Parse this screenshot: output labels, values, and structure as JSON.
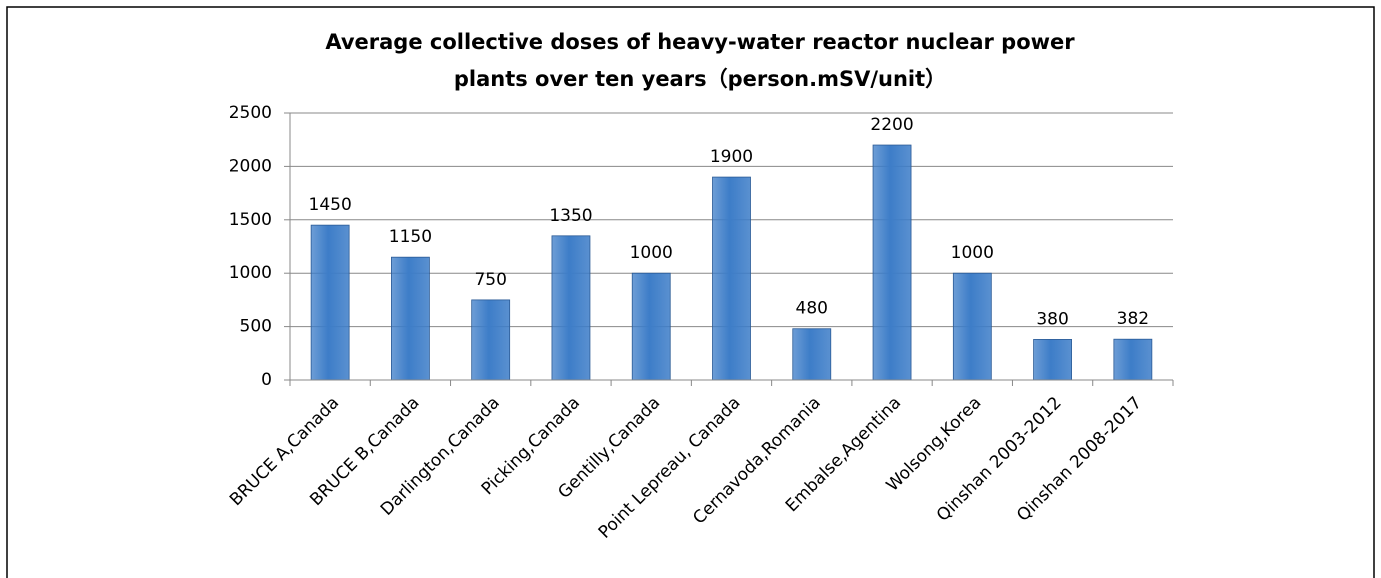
{
  "chart_data": {
    "type": "bar",
    "title": [
      "Average collective doses of heavy-water reactor nuclear power",
      "plants over ten years（person.mSV/unit）"
    ],
    "categories": [
      "BRUCE A,Canada",
      "BRUCE B,Canada",
      "Darlington,Canada",
      "Picking,Canada",
      "Gentilly,Canada",
      "Point Lepreau, Canada",
      "Cernavoda,Romania",
      "Embalse,Agentina",
      "Wolsong,Korea",
      "Qinshan 2003-2012",
      "Qinshan 2008-2017"
    ],
    "values": [
      1450,
      1150,
      750,
      1350,
      1000,
      1900,
      480,
      2200,
      1000,
      380,
      382
    ],
    "color": "#3d7dc8",
    "ylim": [
      0,
      2500
    ],
    "yticks": [
      0,
      500,
      1000,
      1500,
      2000,
      2500
    ],
    "grid": true
  }
}
